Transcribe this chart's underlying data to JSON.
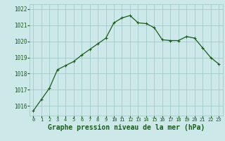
{
  "x": [
    0,
    1,
    2,
    3,
    4,
    5,
    6,
    7,
    8,
    9,
    10,
    11,
    12,
    13,
    14,
    15,
    16,
    17,
    18,
    19,
    20,
    21,
    22,
    23
  ],
  "y": [
    1015.7,
    1016.4,
    1017.1,
    1018.25,
    1018.5,
    1018.75,
    1019.15,
    1019.5,
    1019.85,
    1020.2,
    1021.15,
    1021.45,
    1021.6,
    1021.15,
    1021.1,
    1020.85,
    1020.1,
    1020.05,
    1020.05,
    1020.3,
    1020.2,
    1019.6,
    1019.0,
    1018.6
  ],
  "line_color": "#1a5c1a",
  "marker": "+",
  "marker_size": 3,
  "marker_linewidth": 0.8,
  "bg_color": "#cce8e8",
  "grid_color": "#9dc4c4",
  "xlabel": "Graphe pression niveau de la mer (hPa)",
  "xlabel_color": "#1a5c1a",
  "xlabel_fontsize": 7,
  "ylim_min": 1015.4,
  "ylim_max": 1022.3,
  "yticks": [
    1016,
    1017,
    1018,
    1019,
    1020,
    1021,
    1022
  ],
  "xticks": [
    0,
    1,
    2,
    3,
    4,
    5,
    6,
    7,
    8,
    9,
    10,
    11,
    12,
    13,
    14,
    15,
    16,
    17,
    18,
    19,
    20,
    21,
    22,
    23
  ],
  "tick_color": "#1a5c1a",
  "ytick_fontsize": 5.5,
  "xtick_fontsize": 5.0,
  "line_width": 0.9
}
